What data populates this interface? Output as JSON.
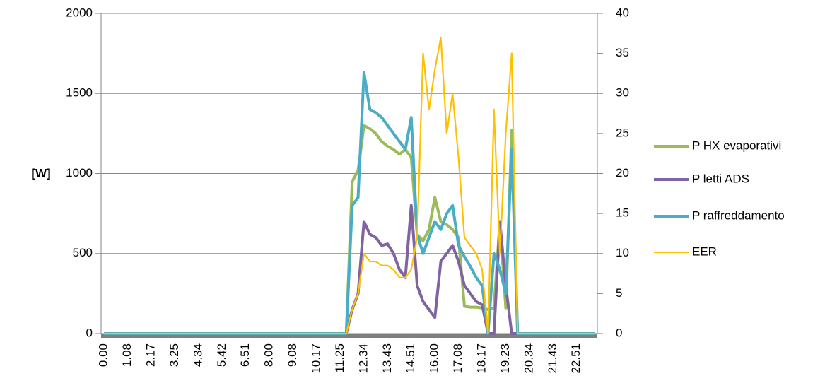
{
  "chart_data": {
    "type": "line",
    "ylabel": "[W]",
    "categories": [
      "0.00",
      null,
      null,
      null,
      "1.08",
      null,
      null,
      null,
      "2.17",
      null,
      null,
      null,
      "3.25",
      null,
      null,
      null,
      "4.34",
      null,
      null,
      null,
      "5.42",
      null,
      null,
      null,
      "6.51",
      null,
      null,
      null,
      "8.00",
      null,
      null,
      null,
      "9.08",
      null,
      null,
      null,
      "10.17",
      null,
      null,
      null,
      "11.25",
      null,
      null,
      null,
      "12.34",
      null,
      null,
      null,
      "13.43",
      null,
      null,
      null,
      "14.51",
      null,
      null,
      null,
      "16.00",
      null,
      null,
      null,
      "17.08",
      null,
      null,
      null,
      "18.17",
      null,
      null,
      null,
      "19.23",
      null,
      null,
      null,
      "20.34",
      null,
      null,
      null,
      "21.43",
      null,
      null,
      null,
      "22.51",
      null,
      null,
      null
    ],
    "series": [
      {
        "name": "P HX evaporativi",
        "color": "#9bbb59",
        "values": [
          0,
          0,
          0,
          0,
          0,
          0,
          0,
          0,
          0,
          0,
          0,
          0,
          0,
          0,
          0,
          0,
          0,
          0,
          0,
          0,
          0,
          0,
          0,
          0,
          0,
          0,
          0,
          0,
          0,
          0,
          0,
          0,
          0,
          0,
          0,
          0,
          0,
          0,
          0,
          0,
          0,
          0,
          950,
          1020,
          1300,
          1280,
          1250,
          1200,
          1170,
          1150,
          1120,
          1150,
          1100,
          620,
          580,
          650,
          850,
          700,
          680,
          650,
          600,
          170,
          165,
          165,
          160,
          150,
          160,
          700,
          160,
          1270,
          0,
          0,
          0,
          0,
          0,
          0,
          0,
          0,
          0,
          0,
          0,
          0,
          0,
          0
        ]
      },
      {
        "name": "P letti ADS",
        "color": "#8064a2",
        "values": [
          0,
          0,
          0,
          0,
          0,
          0,
          0,
          0,
          0,
          0,
          0,
          0,
          0,
          0,
          0,
          0,
          0,
          0,
          0,
          0,
          0,
          0,
          0,
          0,
          0,
          0,
          0,
          0,
          0,
          0,
          0,
          0,
          0,
          0,
          0,
          0,
          0,
          0,
          0,
          0,
          0,
          0,
          150,
          250,
          700,
          620,
          600,
          550,
          560,
          500,
          400,
          350,
          800,
          300,
          200,
          150,
          100,
          450,
          500,
          550,
          450,
          300,
          250,
          200,
          180,
          0,
          0,
          700,
          300,
          0,
          0,
          0,
          0,
          0,
          0,
          0,
          0,
          0,
          0,
          0,
          0,
          0,
          0,
          0
        ]
      },
      {
        "name": "P raffreddamento",
        "color": "#4bacc6",
        "values": [
          0,
          0,
          0,
          0,
          0,
          0,
          0,
          0,
          0,
          0,
          0,
          0,
          0,
          0,
          0,
          0,
          0,
          0,
          0,
          0,
          0,
          0,
          0,
          0,
          0,
          0,
          0,
          0,
          0,
          0,
          0,
          0,
          0,
          0,
          0,
          0,
          0,
          0,
          0,
          0,
          0,
          0,
          800,
          850,
          1630,
          1400,
          1380,
          1350,
          1300,
          1250,
          1200,
          1150,
          1350,
          620,
          500,
          600,
          700,
          650,
          750,
          800,
          550,
          480,
          420,
          350,
          300,
          0,
          500,
          400,
          250,
          1150,
          0,
          0,
          0,
          0,
          0,
          0,
          0,
          0,
          0,
          0,
          0,
          0,
          0,
          0
        ]
      },
      {
        "name": "EER",
        "color": "#ffc000",
        "axis": "y2",
        "values": [
          0,
          0,
          0,
          0,
          0,
          0,
          0,
          0,
          0,
          0,
          0,
          0,
          0,
          0,
          0,
          0,
          0,
          0,
          0,
          0,
          0,
          0,
          0,
          0,
          0,
          0,
          0,
          0,
          0,
          0,
          0,
          0,
          0,
          0,
          0,
          0,
          0,
          0,
          0,
          0,
          0,
          0,
          3,
          5,
          10,
          9,
          9,
          8.5,
          8.5,
          8,
          7,
          7,
          8,
          12,
          35,
          28,
          33,
          37,
          25,
          30,
          22,
          12,
          11,
          10,
          8,
          0,
          28,
          10,
          25,
          35,
          0,
          0,
          0,
          0,
          0,
          0,
          0,
          0,
          0,
          0,
          0,
          0,
          0,
          0
        ]
      }
    ],
    "ylim": [
      0,
      2000
    ],
    "yticks": [
      0,
      500,
      1000,
      1500,
      2000
    ],
    "y2lim": [
      0,
      40
    ],
    "y2ticks": [
      0,
      5,
      10,
      15,
      20,
      25,
      30,
      35,
      40
    ],
    "grid": true,
    "legend": "right"
  }
}
